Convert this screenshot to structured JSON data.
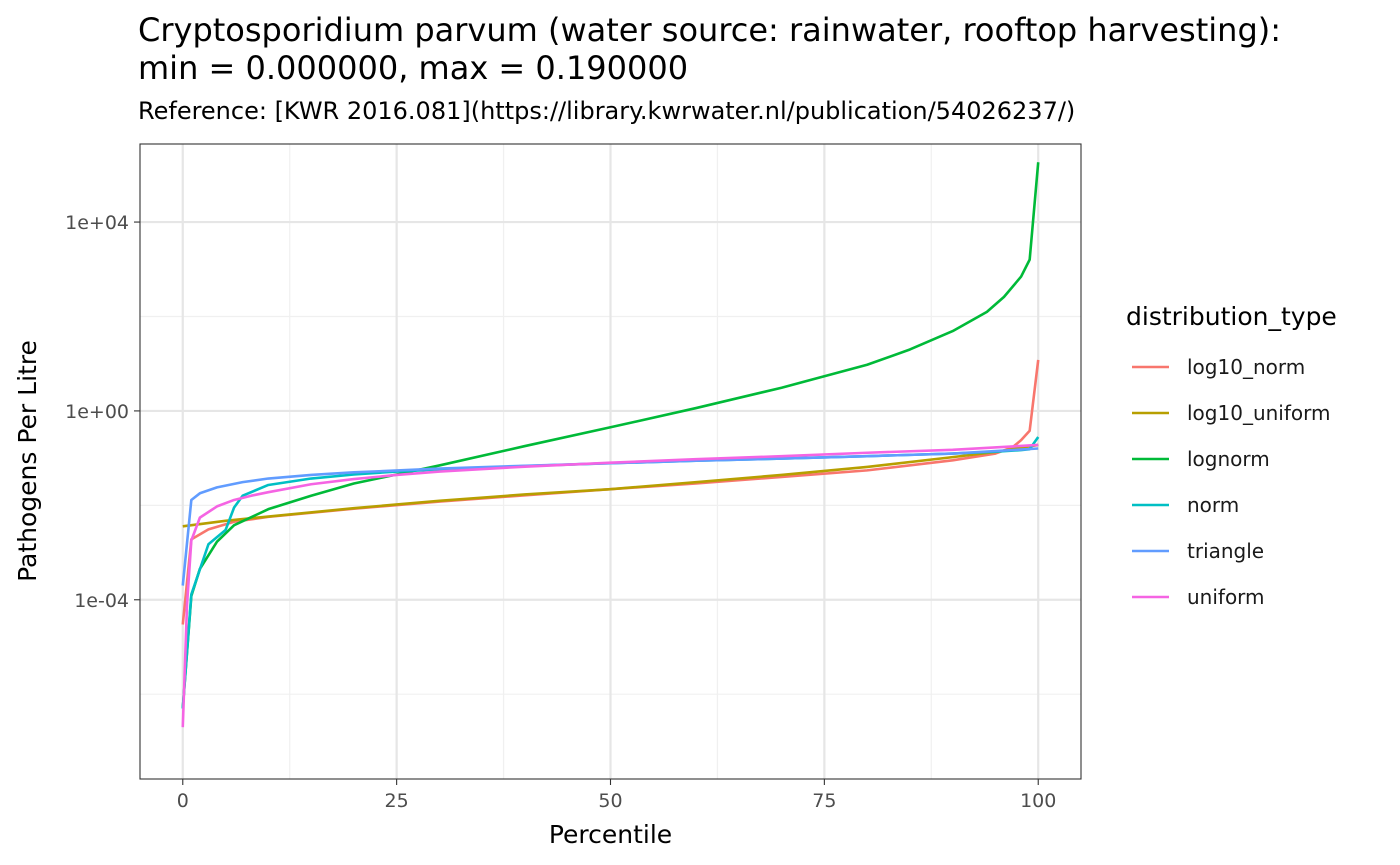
{
  "chart_data": {
    "type": "line",
    "title_lines": [
      "Cryptosporidium parvum (water source: rainwater, rooftop harvesting):",
      "min = 0.000000, max = 0.190000"
    ],
    "subtitle": "Reference: [KWR 2016.081](https://library.kwrwater.nl/publication/54026237/)",
    "xlabel": "Percentile",
    "ylabel": "Pathogens Per Litre",
    "legend_title": "distribution_type",
    "legend_position": "right",
    "x_scale": "linear",
    "y_scale": "log10",
    "xlim": [
      -5,
      105
    ],
    "ylim": [
      1.6e-08,
      450000.0
    ],
    "x_ticks": [
      0,
      25,
      50,
      75,
      100
    ],
    "x_tick_labels": [
      "0",
      "25",
      "50",
      "75",
      "100"
    ],
    "y_ticks": [
      0.0001,
      1,
      10000
    ],
    "y_tick_labels": [
      "1e-04",
      "1e+00",
      "1e+04"
    ],
    "grid": true,
    "series": [
      {
        "name": "log10_norm",
        "color": "#F8766D",
        "points": [
          [
            0,
            3e-05
          ],
          [
            1,
            0.0019
          ],
          [
            3,
            0.0031
          ],
          [
            6,
            0.0045
          ],
          [
            10,
            0.0057
          ],
          [
            20,
            0.0085
          ],
          [
            30,
            0.012
          ],
          [
            40,
            0.0163
          ],
          [
            50,
            0.022
          ],
          [
            60,
            0.029
          ],
          [
            70,
            0.04
          ],
          [
            80,
            0.055
          ],
          [
            90,
            0.09
          ],
          [
            95,
            0.125
          ],
          [
            97,
            0.17
          ],
          [
            98,
            0.24
          ],
          [
            99,
            0.38
          ],
          [
            100,
            12.0
          ]
        ]
      },
      {
        "name": "log10_uniform",
        "color": "#B79F00",
        "points": [
          [
            0,
            0.0036
          ],
          [
            5,
            0.0047
          ],
          [
            10,
            0.0058
          ],
          [
            20,
            0.0087
          ],
          [
            30,
            0.0125
          ],
          [
            40,
            0.017
          ],
          [
            50,
            0.022
          ],
          [
            60,
            0.031
          ],
          [
            70,
            0.044
          ],
          [
            80,
            0.065
          ],
          [
            90,
            0.105
          ],
          [
            95,
            0.135
          ],
          [
            100,
            0.19
          ]
        ]
      },
      {
        "name": "lognorm",
        "color": "#00BA38",
        "points": [
          [
            0,
            5e-07
          ],
          [
            1,
            0.00012
          ],
          [
            2,
            0.00045
          ],
          [
            4,
            0.0017
          ],
          [
            6,
            0.0038
          ],
          [
            10,
            0.0083
          ],
          [
            15,
            0.016
          ],
          [
            20,
            0.029
          ],
          [
            25,
            0.045
          ],
          [
            30,
            0.07
          ],
          [
            40,
            0.18
          ],
          [
            50,
            0.45
          ],
          [
            60,
            1.15
          ],
          [
            70,
            3.1
          ],
          [
            80,
            9.5
          ],
          [
            85,
            20
          ],
          [
            90,
            49
          ],
          [
            94,
            125
          ],
          [
            96,
            260
          ],
          [
            98,
            700
          ],
          [
            99,
            1600
          ],
          [
            100,
            185000
          ]
        ]
      },
      {
        "name": "norm",
        "color": "#00BFC4",
        "points": [
          [
            0,
            5e-07
          ],
          [
            1,
            0.00013
          ],
          [
            3,
            0.0015
          ],
          [
            5,
            0.003
          ],
          [
            6,
            0.009
          ],
          [
            7,
            0.016
          ],
          [
            10,
            0.027
          ],
          [
            15,
            0.037
          ],
          [
            20,
            0.045
          ],
          [
            25,
            0.052
          ],
          [
            30,
            0.058
          ],
          [
            40,
            0.068
          ],
          [
            50,
            0.078
          ],
          [
            60,
            0.088
          ],
          [
            70,
            0.098
          ],
          [
            80,
            0.11
          ],
          [
            90,
            0.125
          ],
          [
            95,
            0.137
          ],
          [
            98,
            0.148
          ],
          [
            99,
            0.155
          ],
          [
            100,
            0.28
          ]
        ]
      },
      {
        "name": "triangle",
        "color": "#619CFF",
        "points": [
          [
            0,
            0.0002
          ],
          [
            1,
            0.013
          ],
          [
            2,
            0.018
          ],
          [
            4,
            0.024
          ],
          [
            7,
            0.031
          ],
          [
            10,
            0.037
          ],
          [
            15,
            0.044
          ],
          [
            20,
            0.05
          ],
          [
            30,
            0.06
          ],
          [
            40,
            0.069
          ],
          [
            50,
            0.078
          ],
          [
            60,
            0.088
          ],
          [
            70,
            0.098
          ],
          [
            80,
            0.11
          ],
          [
            90,
            0.125
          ],
          [
            100,
            0.16
          ]
        ]
      },
      {
        "name": "uniform",
        "color": "#F564E3",
        "points": [
          [
            0,
            2e-07
          ],
          [
            0.5,
            8e-05
          ],
          [
            1,
            0.0018
          ],
          [
            2,
            0.0055
          ],
          [
            4,
            0.0095
          ],
          [
            6,
            0.013
          ],
          [
            8,
            0.016
          ],
          [
            10,
            0.019
          ],
          [
            15,
            0.028
          ],
          [
            20,
            0.036
          ],
          [
            25,
            0.044
          ],
          [
            30,
            0.052
          ],
          [
            40,
            0.066
          ],
          [
            50,
            0.08
          ],
          [
            60,
            0.095
          ],
          [
            70,
            0.11
          ],
          [
            80,
            0.13
          ],
          [
            90,
            0.15
          ],
          [
            100,
            0.19
          ]
        ]
      }
    ]
  }
}
